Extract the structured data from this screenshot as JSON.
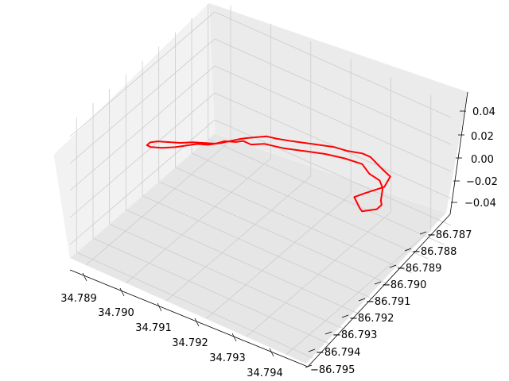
{
  "chart_data": {
    "type": "line",
    "projection": "3d",
    "title": "",
    "xlabel": "",
    "ylabel": "",
    "zlabel": "",
    "grid": true,
    "x_ticks": [
      "34.789",
      "34.790",
      "34.791",
      "34.792",
      "34.793",
      "34.794"
    ],
    "y_ticks": [
      "−86.787",
      "−86.788",
      "−86.789",
      "−86.790",
      "−86.791",
      "−86.792",
      "−86.793",
      "−86.794",
      "−86.795"
    ],
    "z_ticks": [
      "0.04",
      "0.02",
      "0.00",
      "−0.02",
      "−0.04"
    ],
    "xlim": [
      34.7886,
      34.7945
    ],
    "ylim": [
      -86.7954,
      -86.7866
    ],
    "zlim": [
      -0.05,
      0.05
    ],
    "series": [
      {
        "color": "#ff0000",
        "z": 0,
        "description_free_path": true,
        "x": [
          34.789,
          34.789,
          34.7891,
          34.7893,
          34.7895,
          34.7897,
          34.7898,
          34.79,
          34.7902,
          34.7904,
          34.7905,
          34.7908,
          34.791,
          34.7913,
          34.7917,
          34.7921,
          34.7924,
          34.7927,
          34.7929,
          34.7933,
          34.7936,
          34.7937,
          34.7935,
          34.7934,
          34.7937,
          34.7938,
          34.7939,
          34.794,
          34.794,
          34.7939,
          34.7938,
          34.7937,
          34.7935,
          34.7932,
          34.7929,
          34.7925,
          34.7921,
          34.7917,
          34.7913,
          34.7909,
          34.7907,
          34.7905,
          34.7904,
          34.7902,
          34.7901,
          34.7899,
          34.7897,
          34.7895,
          34.7894,
          34.7891,
          34.789
        ],
        "y": [
          -86.7915,
          -86.7917,
          -86.7917,
          -86.7915,
          -86.7912,
          -86.7908,
          -86.7906,
          -86.7904,
          -86.79,
          -86.7895,
          -86.7893,
          -86.7888,
          -86.7887,
          -86.7885,
          -86.7882,
          -86.7879,
          -86.7878,
          -86.7876,
          -86.7876,
          -86.7879,
          -86.7881,
          -86.7887,
          -86.7894,
          -86.7898,
          -86.7902,
          -86.7903,
          -86.7901,
          -86.7899,
          -86.7896,
          -86.7894,
          -86.7891,
          -86.7888,
          -86.7885,
          -86.7884,
          -86.7881,
          -86.7882,
          -86.7884,
          -86.7887,
          -86.789,
          -86.7892,
          -86.7895,
          -86.7895,
          -86.7897,
          -86.7899,
          -86.7902,
          -86.7904,
          -86.7906,
          -86.7909,
          -86.791,
          -86.7913,
          -86.7915
        ]
      }
    ]
  }
}
